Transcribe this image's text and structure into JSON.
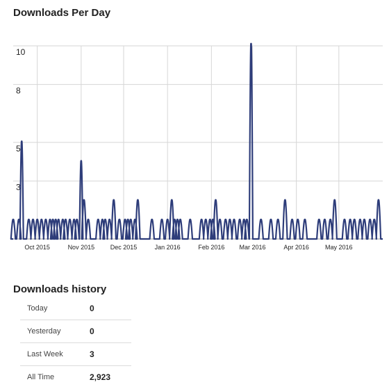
{
  "chart_data": {
    "type": "line",
    "title": "Downloads Per Day",
    "xlabel": "",
    "ylabel": "",
    "ylim": [
      0,
      10
    ],
    "y_ticks": [
      3,
      5,
      8,
      10
    ],
    "x_range": [
      "2015-09-14",
      "2016-06-01"
    ],
    "x_ticks": [
      {
        "date": "2015-10-01",
        "label": "Oct 2015"
      },
      {
        "date": "2015-11-01",
        "label": "Nov 2015"
      },
      {
        "date": "2015-12-01",
        "label": "Dec 2015"
      },
      {
        "date": "2016-01-01",
        "label": "Jan 2016"
      },
      {
        "date": "2016-02-01",
        "label": "Feb 2016"
      },
      {
        "date": "2016-03-01",
        "label": "Mar 2016"
      },
      {
        "date": "2016-04-01",
        "label": "Apr 2016"
      },
      {
        "date": "2016-05-01",
        "label": "May 2016"
      }
    ],
    "grid": true,
    "line_color": "#2e3d7a",
    "series": [
      {
        "name": "",
        "points": [
          [
            "2015-09-14",
            1
          ],
          [
            "2015-09-18",
            1
          ],
          [
            "2015-09-20",
            5
          ],
          [
            "2015-09-25",
            1
          ],
          [
            "2015-09-28",
            1
          ],
          [
            "2015-10-01",
            1
          ],
          [
            "2015-10-04",
            1
          ],
          [
            "2015-10-07",
            1
          ],
          [
            "2015-10-10",
            1
          ],
          [
            "2015-10-12",
            1
          ],
          [
            "2015-10-14",
            1
          ],
          [
            "2015-10-16",
            1
          ],
          [
            "2015-10-19",
            1
          ],
          [
            "2015-10-21",
            1
          ],
          [
            "2015-10-24",
            1
          ],
          [
            "2015-10-27",
            1
          ],
          [
            "2015-10-29",
            1
          ],
          [
            "2015-11-01",
            4
          ],
          [
            "2015-11-03",
            2
          ],
          [
            "2015-11-06",
            1
          ],
          [
            "2015-11-13",
            1
          ],
          [
            "2015-11-16",
            1
          ],
          [
            "2015-11-18",
            1
          ],
          [
            "2015-11-21",
            1
          ],
          [
            "2015-11-24",
            2
          ],
          [
            "2015-11-28",
            1
          ],
          [
            "2015-12-02",
            1
          ],
          [
            "2015-12-04",
            1
          ],
          [
            "2015-12-06",
            1
          ],
          [
            "2015-12-09",
            1
          ],
          [
            "2015-12-11",
            2
          ],
          [
            "2015-12-21",
            1
          ],
          [
            "2015-12-28",
            1
          ],
          [
            "2016-01-01",
            1
          ],
          [
            "2016-01-04",
            2
          ],
          [
            "2016-01-06",
            1
          ],
          [
            "2016-01-08",
            1
          ],
          [
            "2016-01-10",
            1
          ],
          [
            "2016-01-17",
            1
          ],
          [
            "2016-01-25",
            1
          ],
          [
            "2016-01-28",
            1
          ],
          [
            "2016-01-31",
            1
          ],
          [
            "2016-02-02",
            1
          ],
          [
            "2016-02-04",
            2
          ],
          [
            "2016-02-07",
            1
          ],
          [
            "2016-02-11",
            1
          ],
          [
            "2016-02-14",
            1
          ],
          [
            "2016-02-17",
            1
          ],
          [
            "2016-02-21",
            1
          ],
          [
            "2016-02-24",
            1
          ],
          [
            "2016-02-26",
            1
          ],
          [
            "2016-02-29",
            10
          ],
          [
            "2016-03-07",
            1
          ],
          [
            "2016-03-14",
            1
          ],
          [
            "2016-03-19",
            1
          ],
          [
            "2016-03-24",
            2
          ],
          [
            "2016-03-29",
            1
          ],
          [
            "2016-04-02",
            1
          ],
          [
            "2016-04-07",
            1
          ],
          [
            "2016-04-17",
            1
          ],
          [
            "2016-04-21",
            1
          ],
          [
            "2016-04-25",
            1
          ],
          [
            "2016-04-28",
            2
          ],
          [
            "2016-05-05",
            1
          ],
          [
            "2016-05-09",
            1
          ],
          [
            "2016-05-12",
            1
          ],
          [
            "2016-05-16",
            1
          ],
          [
            "2016-05-19",
            1
          ],
          [
            "2016-05-23",
            1
          ],
          [
            "2016-05-26",
            1
          ],
          [
            "2016-05-29",
            2
          ]
        ]
      }
    ]
  },
  "history": {
    "title": "Downloads history",
    "rows": [
      {
        "label": "Today",
        "value": "0"
      },
      {
        "label": "Yesterday",
        "value": "0"
      },
      {
        "label": "Last Week",
        "value": "3"
      },
      {
        "label": "All Time",
        "value": "2,923"
      }
    ]
  }
}
